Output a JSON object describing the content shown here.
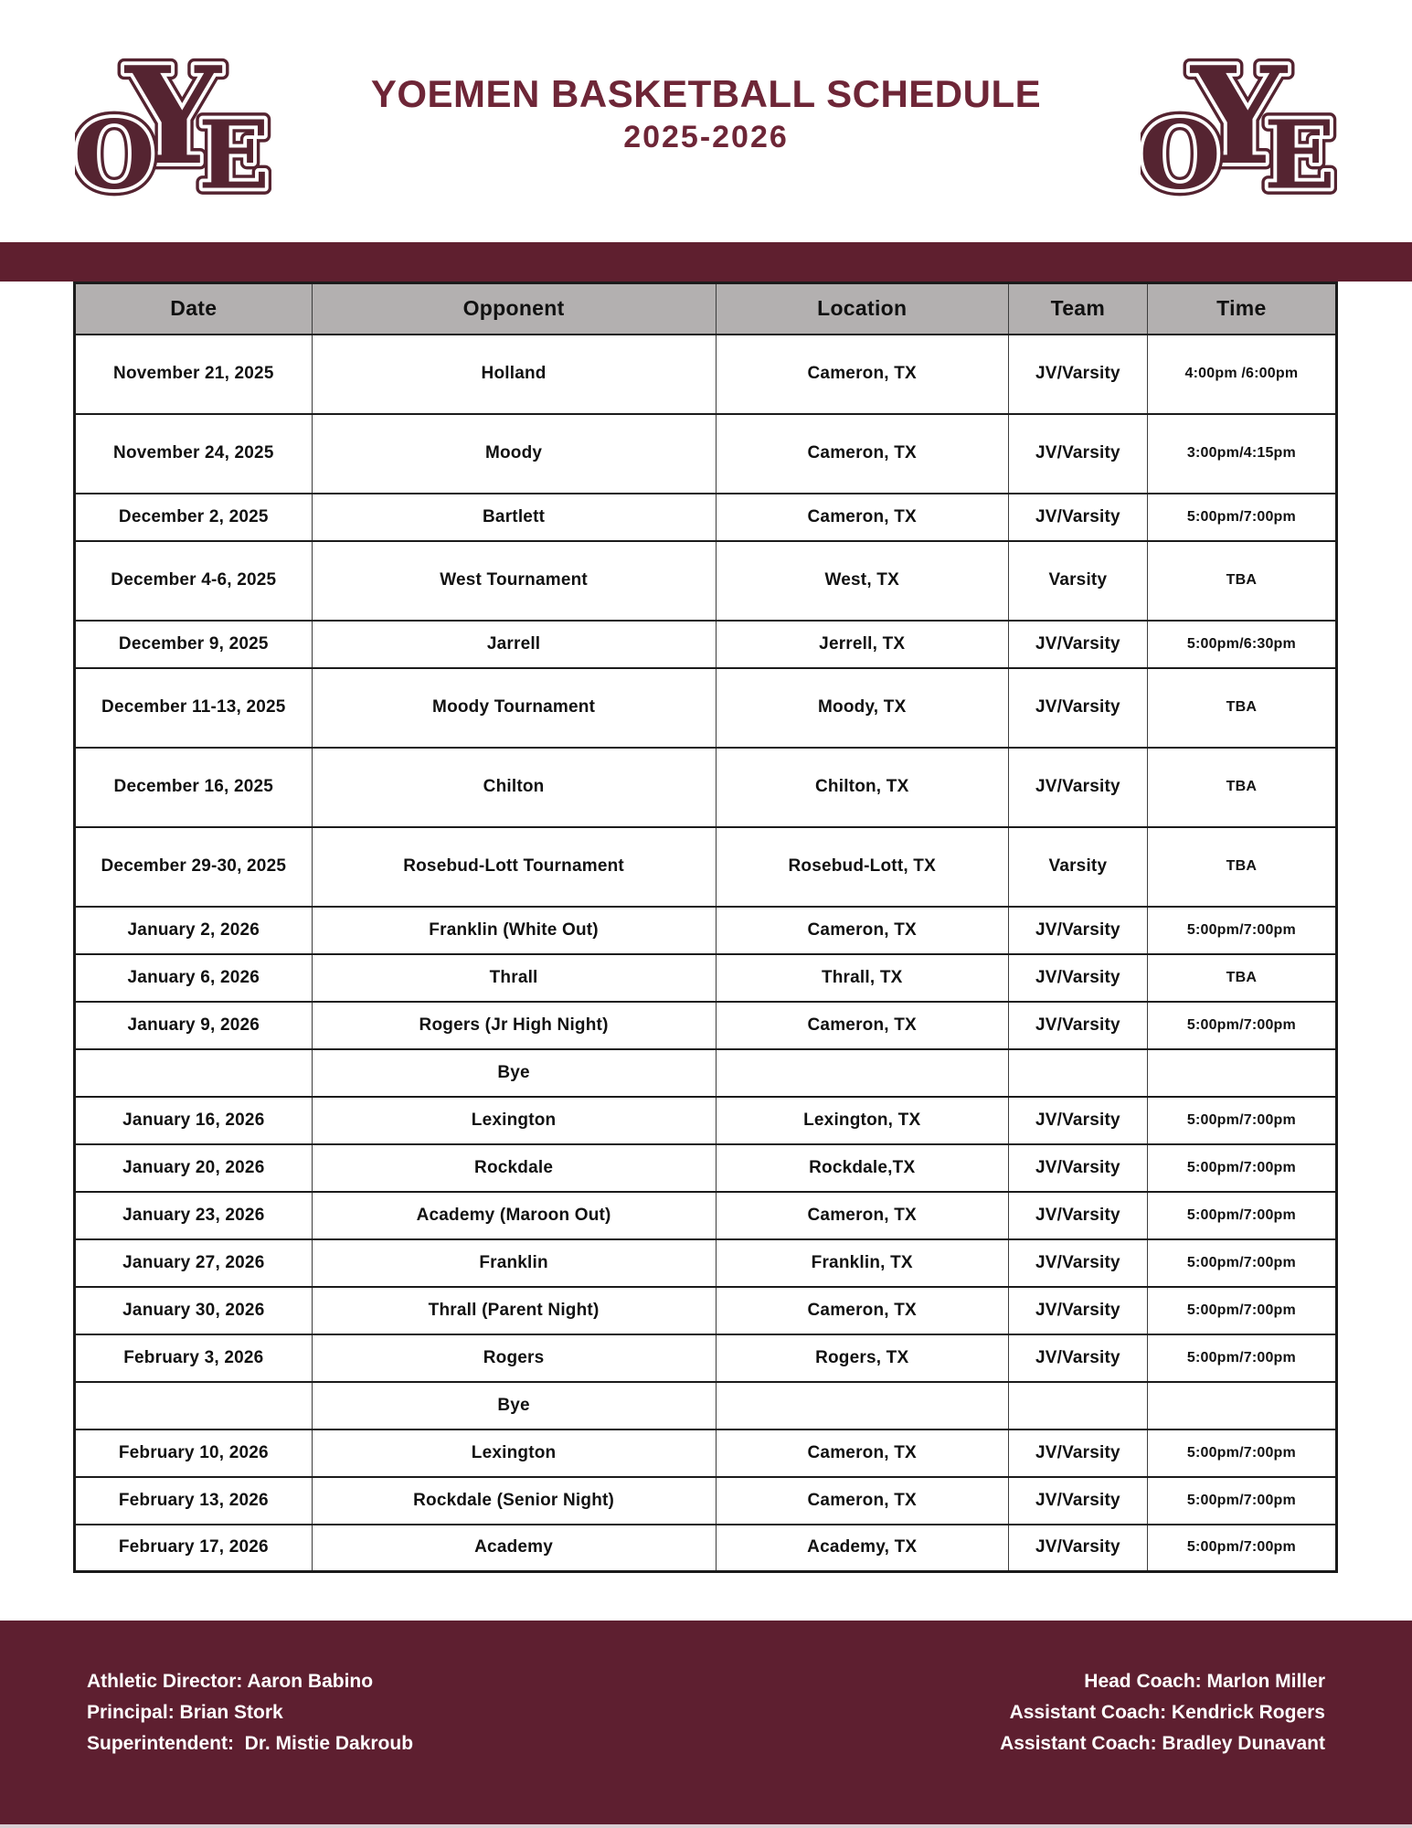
{
  "header": {
    "title": "YOEMEN BASKETBALL SCHEDULE",
    "subtitle": "2025-2026",
    "logo": {
      "o": "O",
      "y": "Y",
      "e": "E"
    }
  },
  "colors": {
    "maroon_band": "#5f1f2f",
    "footer_background": "#5e1f30",
    "title_maroon": "#6e2637",
    "logo_maroon": "#552431",
    "header_cell_gray": "#b3b0b0"
  },
  "schedule": {
    "columns": [
      "Date",
      "Opponent",
      "Location",
      "Team",
      "Time"
    ],
    "rows": [
      {
        "date": "November 21, 2025",
        "opponent": "Holland",
        "location": "Cameron, TX",
        "team": "JV/Varsity",
        "time": "4:00pm /6:00pm",
        "tall": true
      },
      {
        "date": "November 24, 2025",
        "opponent": "Moody",
        "location": "Cameron, TX",
        "team": "JV/Varsity",
        "time": "3:00pm/4:15pm",
        "tall": true
      },
      {
        "date": "December 2, 2025",
        "opponent": "Bartlett",
        "location": "Cameron, TX",
        "team": "JV/Varsity",
        "time": "5:00pm/7:00pm",
        "tall": false
      },
      {
        "date": "December 4-6, 2025",
        "opponent": "West Tournament",
        "location": "West, TX",
        "team": "Varsity",
        "time": "TBA",
        "tall": true
      },
      {
        "date": "December 9, 2025",
        "opponent": "Jarrell",
        "location": "Jerrell, TX",
        "team": "JV/Varsity",
        "time": "5:00pm/6:30pm",
        "tall": false
      },
      {
        "date": "December 11-13, 2025",
        "opponent": "Moody Tournament",
        "location": "Moody, TX",
        "team": "JV/Varsity",
        "time": "TBA",
        "tall": true
      },
      {
        "date": "December 16, 2025",
        "opponent": "Chilton",
        "location": "Chilton, TX",
        "team": "JV/Varsity",
        "time": "TBA",
        "tall": true
      },
      {
        "date": "December 29-30, 2025",
        "opponent": "Rosebud-Lott Tournament",
        "location": "Rosebud-Lott, TX",
        "team": "Varsity",
        "time": "TBA",
        "tall": true
      },
      {
        "date": "January 2, 2026",
        "opponent": "Franklin (White Out)",
        "location": "Cameron, TX",
        "team": "JV/Varsity",
        "time": "5:00pm/7:00pm",
        "tall": false
      },
      {
        "date": "January 6, 2026",
        "opponent": "Thrall",
        "location": "Thrall, TX",
        "team": "JV/Varsity",
        "time": "TBA",
        "tall": false
      },
      {
        "date": "January 9, 2026",
        "opponent": "Rogers (Jr High Night)",
        "location": "Cameron, TX",
        "team": "JV/Varsity",
        "time": "5:00pm/7:00pm",
        "tall": false
      },
      {
        "date": "",
        "opponent": "Bye",
        "location": "",
        "team": "",
        "time": "",
        "tall": false
      },
      {
        "date": "January 16, 2026",
        "opponent": "Lexington",
        "location": "Lexington, TX",
        "team": "JV/Varsity",
        "time": "5:00pm/7:00pm",
        "tall": false
      },
      {
        "date": "January 20, 2026",
        "opponent": "Rockdale",
        "location": "Rockdale,TX",
        "team": "JV/Varsity",
        "time": "5:00pm/7:00pm",
        "tall": false
      },
      {
        "date": "January 23, 2026",
        "opponent": "Academy (Maroon Out)",
        "location": "Cameron, TX",
        "team": "JV/Varsity",
        "time": "5:00pm/7:00pm",
        "tall": false
      },
      {
        "date": "January 27, 2026",
        "opponent": "Franklin",
        "location": "Franklin, TX",
        "team": "JV/Varsity",
        "time": "5:00pm/7:00pm",
        "tall": false
      },
      {
        "date": "January 30, 2026",
        "opponent": "Thrall (Parent Night)",
        "location": "Cameron, TX",
        "team": "JV/Varsity",
        "time": "5:00pm/7:00pm",
        "tall": false
      },
      {
        "date": "February 3, 2026",
        "opponent": "Rogers",
        "location": "Rogers, TX",
        "team": "JV/Varsity",
        "time": "5:00pm/7:00pm",
        "tall": false
      },
      {
        "date": "",
        "opponent": "Bye",
        "location": "",
        "team": "",
        "time": "",
        "tall": false
      },
      {
        "date": "February 10, 2026",
        "opponent": "Lexington",
        "location": "Cameron, TX",
        "team": "JV/Varsity",
        "time": "5:00pm/7:00pm",
        "tall": false
      },
      {
        "date": "February 13, 2026",
        "opponent": "Rockdale (Senior Night)",
        "location": "Cameron, TX",
        "team": "JV/Varsity",
        "time": "5:00pm/7:00pm",
        "tall": false
      },
      {
        "date": "February 17, 2026",
        "opponent": "Academy",
        "location": "Academy, TX",
        "team": "JV/Varsity",
        "time": "5:00pm/7:00pm",
        "tall": false
      }
    ]
  },
  "footer": {
    "left_lines": [
      "Athletic Director: Aaron Babino",
      "Principal: Brian Stork",
      "Superintendent:  Dr. Mistie Dakroub"
    ],
    "right_lines": [
      "Head Coach: Marlon Miller",
      "Assistant Coach: Kendrick Rogers",
      "Assistant Coach: Bradley Dunavant"
    ]
  }
}
